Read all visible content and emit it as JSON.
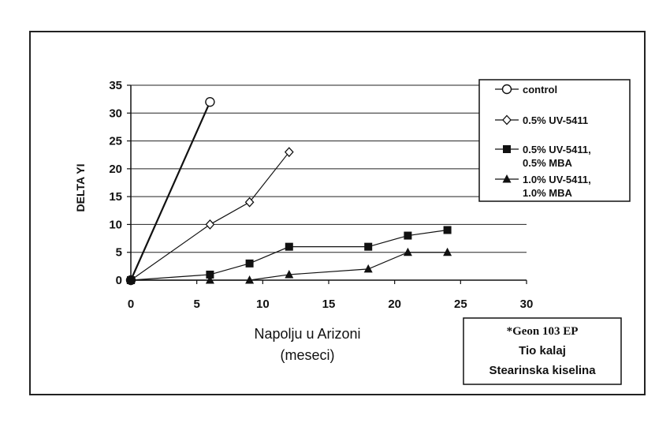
{
  "chart_data": {
    "type": "line",
    "xlabel": [
      "Napolju u Arizoni",
      "(meseci)"
    ],
    "ylabel": "DELTA YI",
    "xlim": [
      0,
      30
    ],
    "ylim": [
      0,
      35
    ],
    "x_ticks": [
      0,
      5,
      10,
      15,
      20,
      25,
      30
    ],
    "y_ticks": [
      0,
      5,
      10,
      15,
      20,
      25,
      30,
      35
    ],
    "grid": "horizontal",
    "legend_position": "top-right",
    "series": [
      {
        "name": "control",
        "marker": "open-circle",
        "x": [
          0,
          6
        ],
        "y": [
          0,
          32
        ]
      },
      {
        "name": "0.5% UV-5411",
        "marker": "open-diamond",
        "x": [
          0,
          6,
          9,
          12
        ],
        "y": [
          0,
          10,
          14,
          23
        ]
      },
      {
        "name": [
          "0.5% UV-5411,",
          "0.5% MBA"
        ],
        "marker": "filled-square",
        "x": [
          0,
          6,
          9,
          12,
          18,
          21,
          24
        ],
        "y": [
          0,
          1,
          3,
          6,
          6,
          8,
          9
        ]
      },
      {
        "name": [
          "1.0% UV-5411,",
          "1.0% MBA"
        ],
        "marker": "filled-triangle",
        "x": [
          0,
          6,
          9,
          12,
          18,
          21,
          24
        ],
        "y": [
          0,
          0,
          0,
          1,
          2,
          5,
          5
        ]
      }
    ],
    "annotation": [
      "*Geon 103 EP",
      "Tio kalaj",
      "Stearinska kiselina"
    ]
  }
}
